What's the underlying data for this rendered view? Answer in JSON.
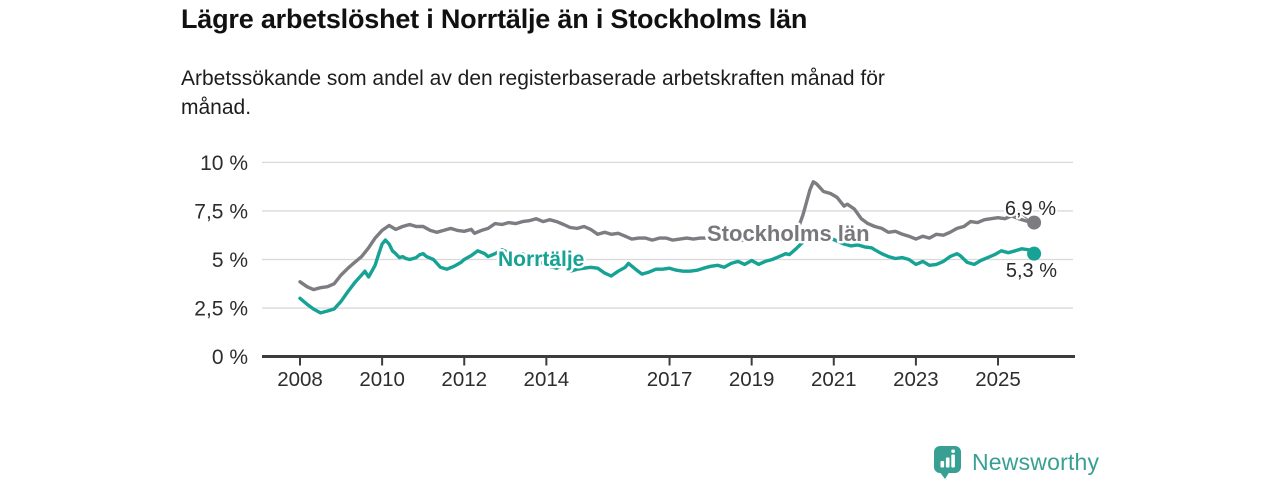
{
  "header": {
    "title": "Lägre arbetslöshet i Norrtälje än i Stockholms län",
    "subtitle": "Arbetssökande som andel av den registerbaserade arbetskraften månad för månad.",
    "subtitle_lines": [
      "Arbetssökande som andel av den registerbaserade arbetskraften månad för",
      "månad."
    ]
  },
  "chart_data": {
    "type": "line",
    "title": "Lägre arbetslöshet i Norrtälje än i Stockholms län",
    "subtitle": "Arbetssökande som andel av den registerbaserade arbetskraften månad för månad.",
    "x_unit": "year (decimal = monthly values)",
    "ylabel": "",
    "xlabel": "",
    "ylim": [
      0,
      10
    ],
    "xlim": [
      2007.1,
      2026.9
    ],
    "grid": "horizontal",
    "y_ticks": [
      0,
      2.5,
      5,
      7.5,
      10
    ],
    "y_tick_labels": [
      "0 %",
      "2,5 %",
      "5 %",
      "7,5 %",
      "10 %"
    ],
    "x_ticks": [
      2008,
      2010,
      2012,
      2014,
      2017,
      2019,
      2021,
      2023,
      2025
    ],
    "x_tick_labels": [
      "2008",
      "2010",
      "2012",
      "2014",
      "2017",
      "2019",
      "2021",
      "2023",
      "2025"
    ],
    "legend_position": "inline-labels-on-lines",
    "colors": {
      "axis": "#3c3c3c",
      "grid": "#d9d9d9",
      "tick_text": "#2d2d2d",
      "value_label_text": "#2a2a2a"
    },
    "series": [
      {
        "name": "Stockholms län",
        "color": "#7c7c81",
        "end_label": "6,9 %",
        "end_value": 6.9,
        "points": [
          [
            2008.0,
            3.85
          ],
          [
            2008.17,
            3.6
          ],
          [
            2008.33,
            3.45
          ],
          [
            2008.5,
            3.55
          ],
          [
            2008.67,
            3.6
          ],
          [
            2008.83,
            3.75
          ],
          [
            2009.0,
            4.2
          ],
          [
            2009.17,
            4.55
          ],
          [
            2009.33,
            4.85
          ],
          [
            2009.5,
            5.15
          ],
          [
            2009.67,
            5.6
          ],
          [
            2009.83,
            6.1
          ],
          [
            2010.0,
            6.5
          ],
          [
            2010.17,
            6.75
          ],
          [
            2010.33,
            6.55
          ],
          [
            2010.5,
            6.7
          ],
          [
            2010.67,
            6.8
          ],
          [
            2010.83,
            6.7
          ],
          [
            2011.0,
            6.7
          ],
          [
            2011.17,
            6.5
          ],
          [
            2011.33,
            6.4
          ],
          [
            2011.5,
            6.5
          ],
          [
            2011.67,
            6.6
          ],
          [
            2011.83,
            6.5
          ],
          [
            2012.0,
            6.45
          ],
          [
            2012.17,
            6.55
          ],
          [
            2012.25,
            6.35
          ],
          [
            2012.42,
            6.5
          ],
          [
            2012.58,
            6.6
          ],
          [
            2012.75,
            6.85
          ],
          [
            2012.92,
            6.8
          ],
          [
            2013.08,
            6.9
          ],
          [
            2013.25,
            6.85
          ],
          [
            2013.42,
            6.95
          ],
          [
            2013.58,
            7.0
          ],
          [
            2013.75,
            7.1
          ],
          [
            2013.92,
            6.95
          ],
          [
            2014.08,
            7.05
          ],
          [
            2014.25,
            6.95
          ],
          [
            2014.42,
            6.8
          ],
          [
            2014.58,
            6.65
          ],
          [
            2014.75,
            6.6
          ],
          [
            2014.92,
            6.7
          ],
          [
            2015.08,
            6.55
          ],
          [
            2015.25,
            6.3
          ],
          [
            2015.42,
            6.4
          ],
          [
            2015.58,
            6.3
          ],
          [
            2015.75,
            6.35
          ],
          [
            2015.92,
            6.2
          ],
          [
            2016.08,
            6.05
          ],
          [
            2016.25,
            6.1
          ],
          [
            2016.42,
            6.1
          ],
          [
            2016.58,
            6.0
          ],
          [
            2016.75,
            6.1
          ],
          [
            2016.92,
            6.1
          ],
          [
            2017.08,
            6.0
          ],
          [
            2017.25,
            6.05
          ],
          [
            2017.42,
            6.1
          ],
          [
            2017.58,
            6.05
          ],
          [
            2017.75,
            6.1
          ],
          [
            2017.92,
            6.1
          ],
          [
            2018.08,
            6.0
          ],
          [
            2018.25,
            6.05
          ],
          [
            2018.42,
            6.0
          ],
          [
            2018.58,
            6.05
          ],
          [
            2018.75,
            6.0
          ],
          [
            2018.92,
            6.0
          ],
          [
            2019.08,
            6.0
          ],
          [
            2019.25,
            5.95
          ],
          [
            2019.42,
            6.0
          ],
          [
            2019.58,
            5.95
          ],
          [
            2019.75,
            6.0
          ],
          [
            2019.92,
            6.0
          ],
          [
            2020.08,
            6.3
          ],
          [
            2020.25,
            7.3
          ],
          [
            2020.42,
            8.6
          ],
          [
            2020.5,
            9.0
          ],
          [
            2020.58,
            8.9
          ],
          [
            2020.75,
            8.5
          ],
          [
            2020.92,
            8.4
          ],
          [
            2021.08,
            8.2
          ],
          [
            2021.25,
            7.75
          ],
          [
            2021.33,
            7.85
          ],
          [
            2021.5,
            7.6
          ],
          [
            2021.67,
            7.1
          ],
          [
            2021.83,
            6.85
          ],
          [
            2022.0,
            6.7
          ],
          [
            2022.17,
            6.6
          ],
          [
            2022.33,
            6.4
          ],
          [
            2022.5,
            6.45
          ],
          [
            2022.67,
            6.3
          ],
          [
            2022.83,
            6.2
          ],
          [
            2023.0,
            6.05
          ],
          [
            2023.17,
            6.2
          ],
          [
            2023.33,
            6.1
          ],
          [
            2023.5,
            6.3
          ],
          [
            2023.67,
            6.25
          ],
          [
            2023.83,
            6.4
          ],
          [
            2024.0,
            6.6
          ],
          [
            2024.17,
            6.7
          ],
          [
            2024.33,
            6.95
          ],
          [
            2024.5,
            6.9
          ],
          [
            2024.67,
            7.05
          ],
          [
            2024.83,
            7.1
          ],
          [
            2025.0,
            7.15
          ],
          [
            2025.17,
            7.1
          ],
          [
            2025.33,
            7.25
          ],
          [
            2025.5,
            7.1
          ],
          [
            2025.67,
            7.0
          ],
          [
            2025.83,
            6.9
          ]
        ]
      },
      {
        "name": "Norrtälje",
        "color": "#16a294",
        "end_label": "5,3 %",
        "end_value": 5.3,
        "points": [
          [
            2008.0,
            3.0
          ],
          [
            2008.17,
            2.7
          ],
          [
            2008.33,
            2.45
          ],
          [
            2008.5,
            2.25
          ],
          [
            2008.67,
            2.35
          ],
          [
            2008.83,
            2.45
          ],
          [
            2009.0,
            2.85
          ],
          [
            2009.17,
            3.35
          ],
          [
            2009.33,
            3.8
          ],
          [
            2009.5,
            4.2
          ],
          [
            2009.58,
            4.4
          ],
          [
            2009.67,
            4.1
          ],
          [
            2009.83,
            4.7
          ],
          [
            2009.92,
            5.3
          ],
          [
            2010.0,
            5.8
          ],
          [
            2010.08,
            6.0
          ],
          [
            2010.17,
            5.8
          ],
          [
            2010.25,
            5.45
          ],
          [
            2010.33,
            5.3
          ],
          [
            2010.42,
            5.1
          ],
          [
            2010.5,
            5.15
          ],
          [
            2010.58,
            5.05
          ],
          [
            2010.67,
            5.0
          ],
          [
            2010.83,
            5.1
          ],
          [
            2010.92,
            5.25
          ],
          [
            2011.0,
            5.3
          ],
          [
            2011.08,
            5.15
          ],
          [
            2011.25,
            5.0
          ],
          [
            2011.42,
            4.6
          ],
          [
            2011.58,
            4.5
          ],
          [
            2011.75,
            4.65
          ],
          [
            2011.92,
            4.85
          ],
          [
            2012.0,
            5.0
          ],
          [
            2012.17,
            5.2
          ],
          [
            2012.33,
            5.45
          ],
          [
            2012.5,
            5.3
          ],
          [
            2012.58,
            5.15
          ],
          [
            2012.75,
            5.3
          ],
          [
            2012.92,
            5.5
          ],
          [
            2013.08,
            5.35
          ],
          [
            2013.25,
            5.15
          ],
          [
            2013.42,
            5.3
          ],
          [
            2013.58,
            5.1
          ],
          [
            2013.75,
            4.9
          ],
          [
            2013.92,
            4.8
          ],
          [
            2014.08,
            4.65
          ],
          [
            2014.25,
            4.55
          ],
          [
            2014.42,
            4.7
          ],
          [
            2014.58,
            4.4
          ],
          [
            2014.75,
            4.5
          ],
          [
            2014.92,
            4.55
          ],
          [
            2015.08,
            4.6
          ],
          [
            2015.25,
            4.55
          ],
          [
            2015.42,
            4.3
          ],
          [
            2015.58,
            4.15
          ],
          [
            2015.75,
            4.4
          ],
          [
            2015.92,
            4.6
          ],
          [
            2016.0,
            4.8
          ],
          [
            2016.17,
            4.5
          ],
          [
            2016.33,
            4.25
          ],
          [
            2016.5,
            4.35
          ],
          [
            2016.67,
            4.5
          ],
          [
            2016.83,
            4.5
          ],
          [
            2017.0,
            4.55
          ],
          [
            2017.17,
            4.45
          ],
          [
            2017.33,
            4.4
          ],
          [
            2017.5,
            4.4
          ],
          [
            2017.67,
            4.45
          ],
          [
            2017.83,
            4.55
          ],
          [
            2018.0,
            4.65
          ],
          [
            2018.17,
            4.7
          ],
          [
            2018.33,
            4.6
          ],
          [
            2018.5,
            4.8
          ],
          [
            2018.67,
            4.9
          ],
          [
            2018.83,
            4.75
          ],
          [
            2019.0,
            4.95
          ],
          [
            2019.17,
            4.75
          ],
          [
            2019.33,
            4.9
          ],
          [
            2019.5,
            5.0
          ],
          [
            2019.67,
            5.15
          ],
          [
            2019.83,
            5.3
          ],
          [
            2019.92,
            5.25
          ],
          [
            2020.08,
            5.55
          ],
          [
            2020.25,
            5.9
          ],
          [
            2020.42,
            6.15
          ],
          [
            2020.58,
            6.3
          ],
          [
            2020.75,
            6.2
          ],
          [
            2020.92,
            6.1
          ],
          [
            2021.08,
            5.95
          ],
          [
            2021.25,
            5.8
          ],
          [
            2021.42,
            5.7
          ],
          [
            2021.58,
            5.75
          ],
          [
            2021.75,
            5.65
          ],
          [
            2021.92,
            5.6
          ],
          [
            2022.0,
            5.5
          ],
          [
            2022.17,
            5.3
          ],
          [
            2022.33,
            5.15
          ],
          [
            2022.5,
            5.05
          ],
          [
            2022.67,
            5.1
          ],
          [
            2022.83,
            5.0
          ],
          [
            2023.0,
            4.75
          ],
          [
            2023.17,
            4.9
          ],
          [
            2023.33,
            4.7
          ],
          [
            2023.5,
            4.75
          ],
          [
            2023.67,
            4.9
          ],
          [
            2023.83,
            5.15
          ],
          [
            2024.0,
            5.3
          ],
          [
            2024.08,
            5.2
          ],
          [
            2024.25,
            4.85
          ],
          [
            2024.42,
            4.75
          ],
          [
            2024.58,
            4.95
          ],
          [
            2024.75,
            5.1
          ],
          [
            2024.92,
            5.25
          ],
          [
            2025.08,
            5.45
          ],
          [
            2025.25,
            5.35
          ],
          [
            2025.42,
            5.45
          ],
          [
            2025.58,
            5.55
          ],
          [
            2025.75,
            5.5
          ],
          [
            2025.83,
            5.3
          ]
        ]
      }
    ]
  },
  "footer": {
    "brand": "Newsworthy",
    "brand_color": "#38a093",
    "logo_icon": "bar-chart-speech-bubble-icon"
  }
}
